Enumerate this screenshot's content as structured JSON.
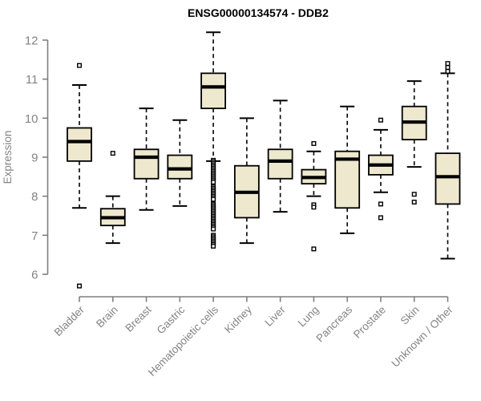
{
  "chart_data": {
    "type": "boxplot",
    "title": "ENSG00000134574 - DDB2",
    "xlabel": "",
    "ylabel": "Expression",
    "ylim": [
      6,
      12
    ],
    "yticks": [
      6,
      7,
      8,
      9,
      10,
      11,
      12
    ],
    "grid": false,
    "legend": null,
    "colors": {
      "box_fill": "#EEE8CE",
      "box_stroke": "#000000",
      "median": "#000000",
      "whisker": "#000000",
      "axis": "#7F7F7F",
      "tick_label": "#848484",
      "title": "#000000",
      "background": "#FFFFFF"
    },
    "categories": [
      "Bladder",
      "Brain",
      "Breast",
      "Gastric",
      "Hematopoietic cells",
      "Kidney",
      "Liver",
      "Lung",
      "Pancreas",
      "Prostate",
      "Skin",
      "Unknown / Other"
    ],
    "series": [
      {
        "category": "Bladder",
        "low": 7.7,
        "q1": 8.9,
        "median": 9.4,
        "q3": 9.75,
        "high": 10.85,
        "outliers": [
          11.35,
          5.7
        ]
      },
      {
        "category": "Brain",
        "low": 6.8,
        "q1": 7.25,
        "median": 7.45,
        "q3": 7.68,
        "high": 8.0,
        "outliers": [
          9.1
        ]
      },
      {
        "category": "Breast",
        "low": 7.65,
        "q1": 8.45,
        "median": 9.0,
        "q3": 9.2,
        "high": 10.25,
        "outliers": []
      },
      {
        "category": "Gastric",
        "low": 7.75,
        "q1": 8.45,
        "median": 8.7,
        "q3": 9.05,
        "high": 9.95,
        "outliers": []
      },
      {
        "category": "Hematopoietic cells",
        "low": 8.9,
        "q1": 10.25,
        "median": 10.8,
        "q3": 11.15,
        "high": 12.2,
        "outliers": [
          8.92,
          8.88,
          8.84,
          8.8,
          8.76,
          8.72,
          8.68,
          8.64,
          8.6,
          8.56,
          8.52,
          8.48,
          8.44,
          8.4,
          8.36,
          8.24,
          8.2,
          8.16,
          8.12,
          8.08,
          8.04,
          8.0,
          7.96,
          7.92,
          7.8,
          7.76,
          7.72,
          7.68,
          7.64,
          7.6,
          7.56,
          7.52,
          7.48,
          7.44,
          7.4,
          7.36,
          7.32,
          7.28,
          7.24,
          7.2,
          7.16,
          7.0,
          6.96,
          6.92,
          6.88,
          6.84,
          6.8,
          6.76,
          6.72
        ]
      },
      {
        "category": "Kidney",
        "low": 6.8,
        "q1": 7.45,
        "median": 8.1,
        "q3": 8.78,
        "high": 10.0,
        "outliers": []
      },
      {
        "category": "Liver",
        "low": 7.6,
        "q1": 8.45,
        "median": 8.9,
        "q3": 9.2,
        "high": 10.45,
        "outliers": []
      },
      {
        "category": "Lung",
        "low": 8.0,
        "q1": 8.32,
        "median": 8.48,
        "q3": 8.68,
        "high": 9.15,
        "outliers": [
          9.35,
          7.78,
          7.72,
          6.65
        ]
      },
      {
        "category": "Pancreas",
        "low": 7.05,
        "q1": 7.7,
        "median": 8.95,
        "q3": 9.15,
        "high": 10.3,
        "outliers": []
      },
      {
        "category": "Prostate",
        "low": 8.1,
        "q1": 8.55,
        "median": 8.8,
        "q3": 9.05,
        "high": 9.7,
        "outliers": [
          9.95,
          7.8,
          7.45
        ]
      },
      {
        "category": "Skin",
        "low": 8.75,
        "q1": 9.45,
        "median": 9.9,
        "q3": 10.3,
        "high": 10.95,
        "outliers": [
          8.05,
          7.85
        ]
      },
      {
        "category": "Unknown / Other",
        "low": 6.4,
        "q1": 7.8,
        "median": 8.5,
        "q3": 9.1,
        "high": 11.15,
        "outliers": [
          11.2,
          11.3,
          11.4
        ]
      }
    ]
  }
}
